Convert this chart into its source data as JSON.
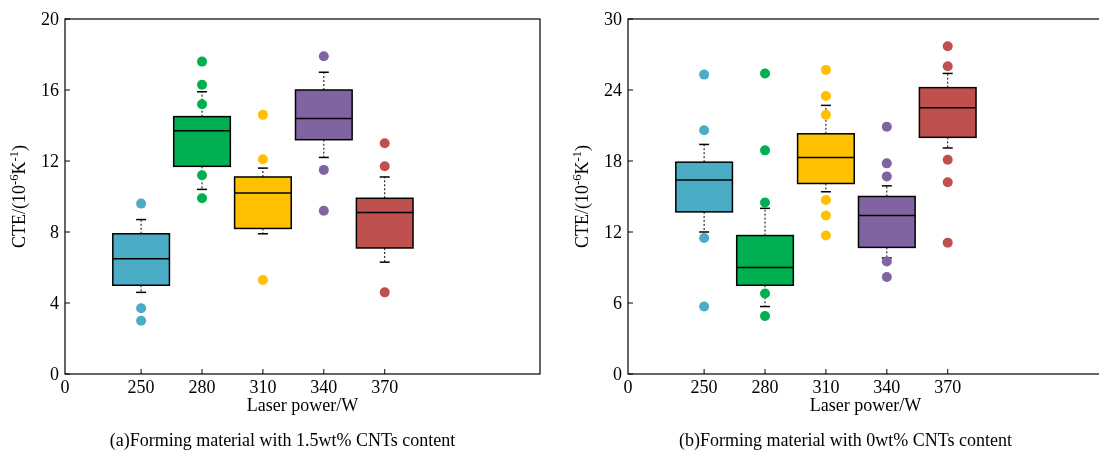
{
  "chart_data": [
    {
      "type": "box",
      "xlabel": "Laser power/W",
      "ylabel": "CTE/(10$^{-6}$K$^{-1}$)",
      "annotations": [
        "0",
        "(a)Forming material with 1.5wt% CNTs content"
      ],
      "categories": [
        "250",
        "280",
        "310",
        "340",
        "370"
      ],
      "ylim": [
        0,
        20
      ],
      "yticks": [
        0,
        4,
        8,
        12,
        16,
        20
      ],
      "colors": [
        "#4bacc6",
        "#00b050",
        "#ffc000",
        "#8064a2",
        "#c0504d"
      ],
      "boxes": [
        {
          "low": 4.6,
          "q1": 5.0,
          "median": 6.5,
          "q3": 7.9,
          "high": 8.7,
          "outliers": [
            9.6,
            3.7,
            3.0
          ]
        },
        {
          "low": 10.4,
          "q1": 11.7,
          "median": 13.7,
          "q3": 14.5,
          "high": 15.9,
          "outliers": [
            17.6,
            16.3,
            15.2,
            11.2,
            9.9
          ]
        },
        {
          "low": 7.9,
          "q1": 8.2,
          "median": 10.2,
          "q3": 11.1,
          "high": 11.6,
          "outliers": [
            14.6,
            12.1,
            5.3
          ]
        },
        {
          "low": 12.2,
          "q1": 13.2,
          "median": 14.4,
          "q3": 16.0,
          "high": 17.0,
          "outliers": [
            17.9,
            11.5,
            9.2
          ]
        },
        {
          "low": 6.3,
          "q1": 7.1,
          "median": 9.1,
          "q3": 9.9,
          "high": 11.1,
          "outliers": [
            13.0,
            11.7,
            4.6
          ]
        }
      ]
    },
    {
      "type": "box",
      "xlabel": "Laser power/W",
      "ylabel": "CTE/(10$^{-6}$K$^{-1}$)",
      "annotations": [
        "0",
        "(b)Forming material with 0wt% CNTs content"
      ],
      "categories": [
        "250",
        "280",
        "310",
        "340",
        "370"
      ],
      "ylim": [
        0,
        30
      ],
      "yticks": [
        0,
        6,
        12,
        18,
        24,
        30
      ],
      "colors": [
        "#4bacc6",
        "#00b050",
        "#ffc000",
        "#8064a2",
        "#c0504d"
      ],
      "boxes": [
        {
          "low": 12.0,
          "q1": 13.7,
          "median": 16.4,
          "q3": 17.9,
          "high": 19.4,
          "outliers": [
            25.3,
            20.6,
            11.5,
            5.7
          ]
        },
        {
          "low": 5.7,
          "q1": 7.5,
          "median": 9.0,
          "q3": 11.7,
          "high": 14.0,
          "outliers": [
            25.4,
            18.9,
            14.5,
            6.8,
            4.9
          ]
        },
        {
          "low": 15.4,
          "q1": 16.1,
          "median": 18.3,
          "q3": 20.3,
          "high": 22.7,
          "outliers": [
            25.7,
            23.5,
            21.9,
            14.7,
            13.4,
            11.7
          ]
        },
        {
          "low": 9.8,
          "q1": 10.7,
          "median": 13.4,
          "q3": 15.0,
          "high": 15.9,
          "outliers": [
            20.9,
            17.8,
            16.7,
            9.5,
            8.2
          ]
        },
        {
          "low": 19.1,
          "q1": 20.0,
          "median": 22.5,
          "q3": 24.2,
          "high": 25.4,
          "outliers": [
            27.7,
            26.0,
            18.1,
            16.2,
            11.1
          ]
        }
      ]
    }
  ]
}
